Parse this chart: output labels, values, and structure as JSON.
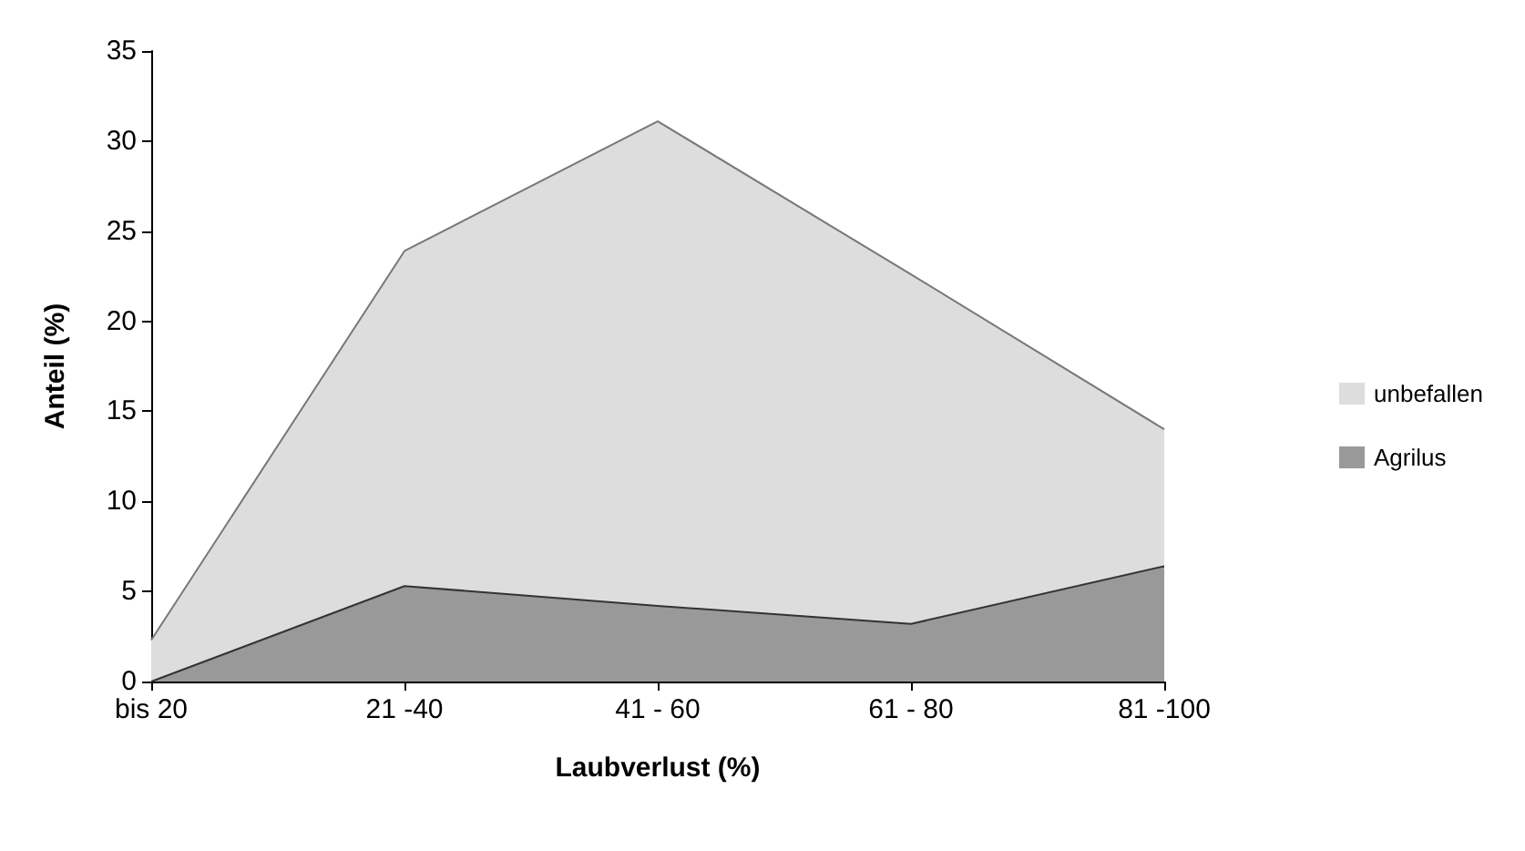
{
  "chart_data": {
    "type": "area",
    "xlabel": "Laubverlust (%)",
    "ylabel": "Anteil (%)",
    "categories": [
      "bis 20",
      "21 -40",
      "41 - 60",
      "61 - 80",
      "81 -100"
    ],
    "series": [
      {
        "name": "unbefallen",
        "color": "#dddddd",
        "values": [
          2.3,
          23.9,
          31.1,
          22.6,
          14.0
        ]
      },
      {
        "name": "Agrilus",
        "color": "#999999",
        "values": [
          0,
          5.3,
          4.2,
          3.2,
          6.4
        ]
      }
    ],
    "ylim": [
      0,
      35
    ],
    "yticks": [
      0,
      5,
      10,
      15,
      20,
      25,
      30,
      35
    ],
    "grid": false,
    "legend": "right"
  }
}
